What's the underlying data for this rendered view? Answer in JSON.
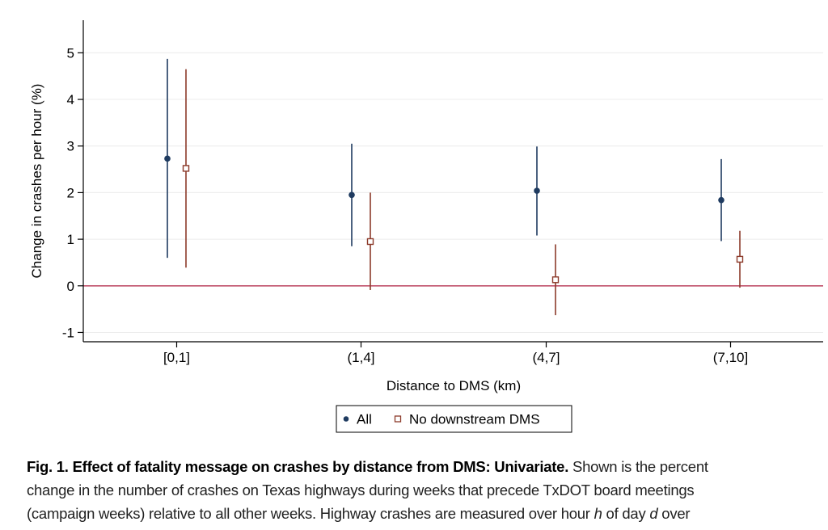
{
  "chart_data": {
    "type": "scatter",
    "subtype": "point-with-confidence-interval",
    "xlabel": "Distance to DMS (km)",
    "ylabel": "Change in crashes per hour (%)",
    "categories": [
      "[0,1]",
      "(1,4]",
      "(4,7]",
      "(7,10]"
    ],
    "ylim": [
      -1.2,
      5.7
    ],
    "yticks": [
      -1,
      0,
      1,
      2,
      3,
      4,
      5
    ],
    "grid": true,
    "reference_line": {
      "y": 0,
      "color": "#c0506a"
    },
    "legend_position": "bottom-center",
    "series": [
      {
        "name": "All",
        "marker": "filled-circle",
        "color": "#1f3b60",
        "estimates": [
          2.73,
          1.95,
          2.04,
          1.84
        ],
        "ci_low": [
          0.6,
          0.85,
          1.08,
          0.96
        ],
        "ci_high": [
          4.87,
          3.05,
          2.99,
          2.72
        ]
      },
      {
        "name": "No downstream DMS",
        "marker": "hollow-square",
        "color": "#8c3a2a",
        "estimates": [
          2.52,
          0.95,
          0.13,
          0.57
        ],
        "ci_low": [
          0.39,
          -0.09,
          -0.63,
          -0.04
        ],
        "ci_high": [
          4.65,
          2.0,
          0.89,
          1.18
        ]
      }
    ]
  },
  "caption": {
    "bold": "Fig. 1. Effect of fatality message on crashes by distance from DMS: Univariate.",
    "line1_rest": " Shown is the percent",
    "line2": "change in the number of crashes on Texas highways during weeks that precede TxDOT board meetings",
    "line3_a": "(campaign weeks) relative to all other weeks. Highway crashes are measured over hour ",
    "line3_h": "h",
    "line3_b": " of day ",
    "line3_d": "d",
    "line3_c": " over"
  }
}
